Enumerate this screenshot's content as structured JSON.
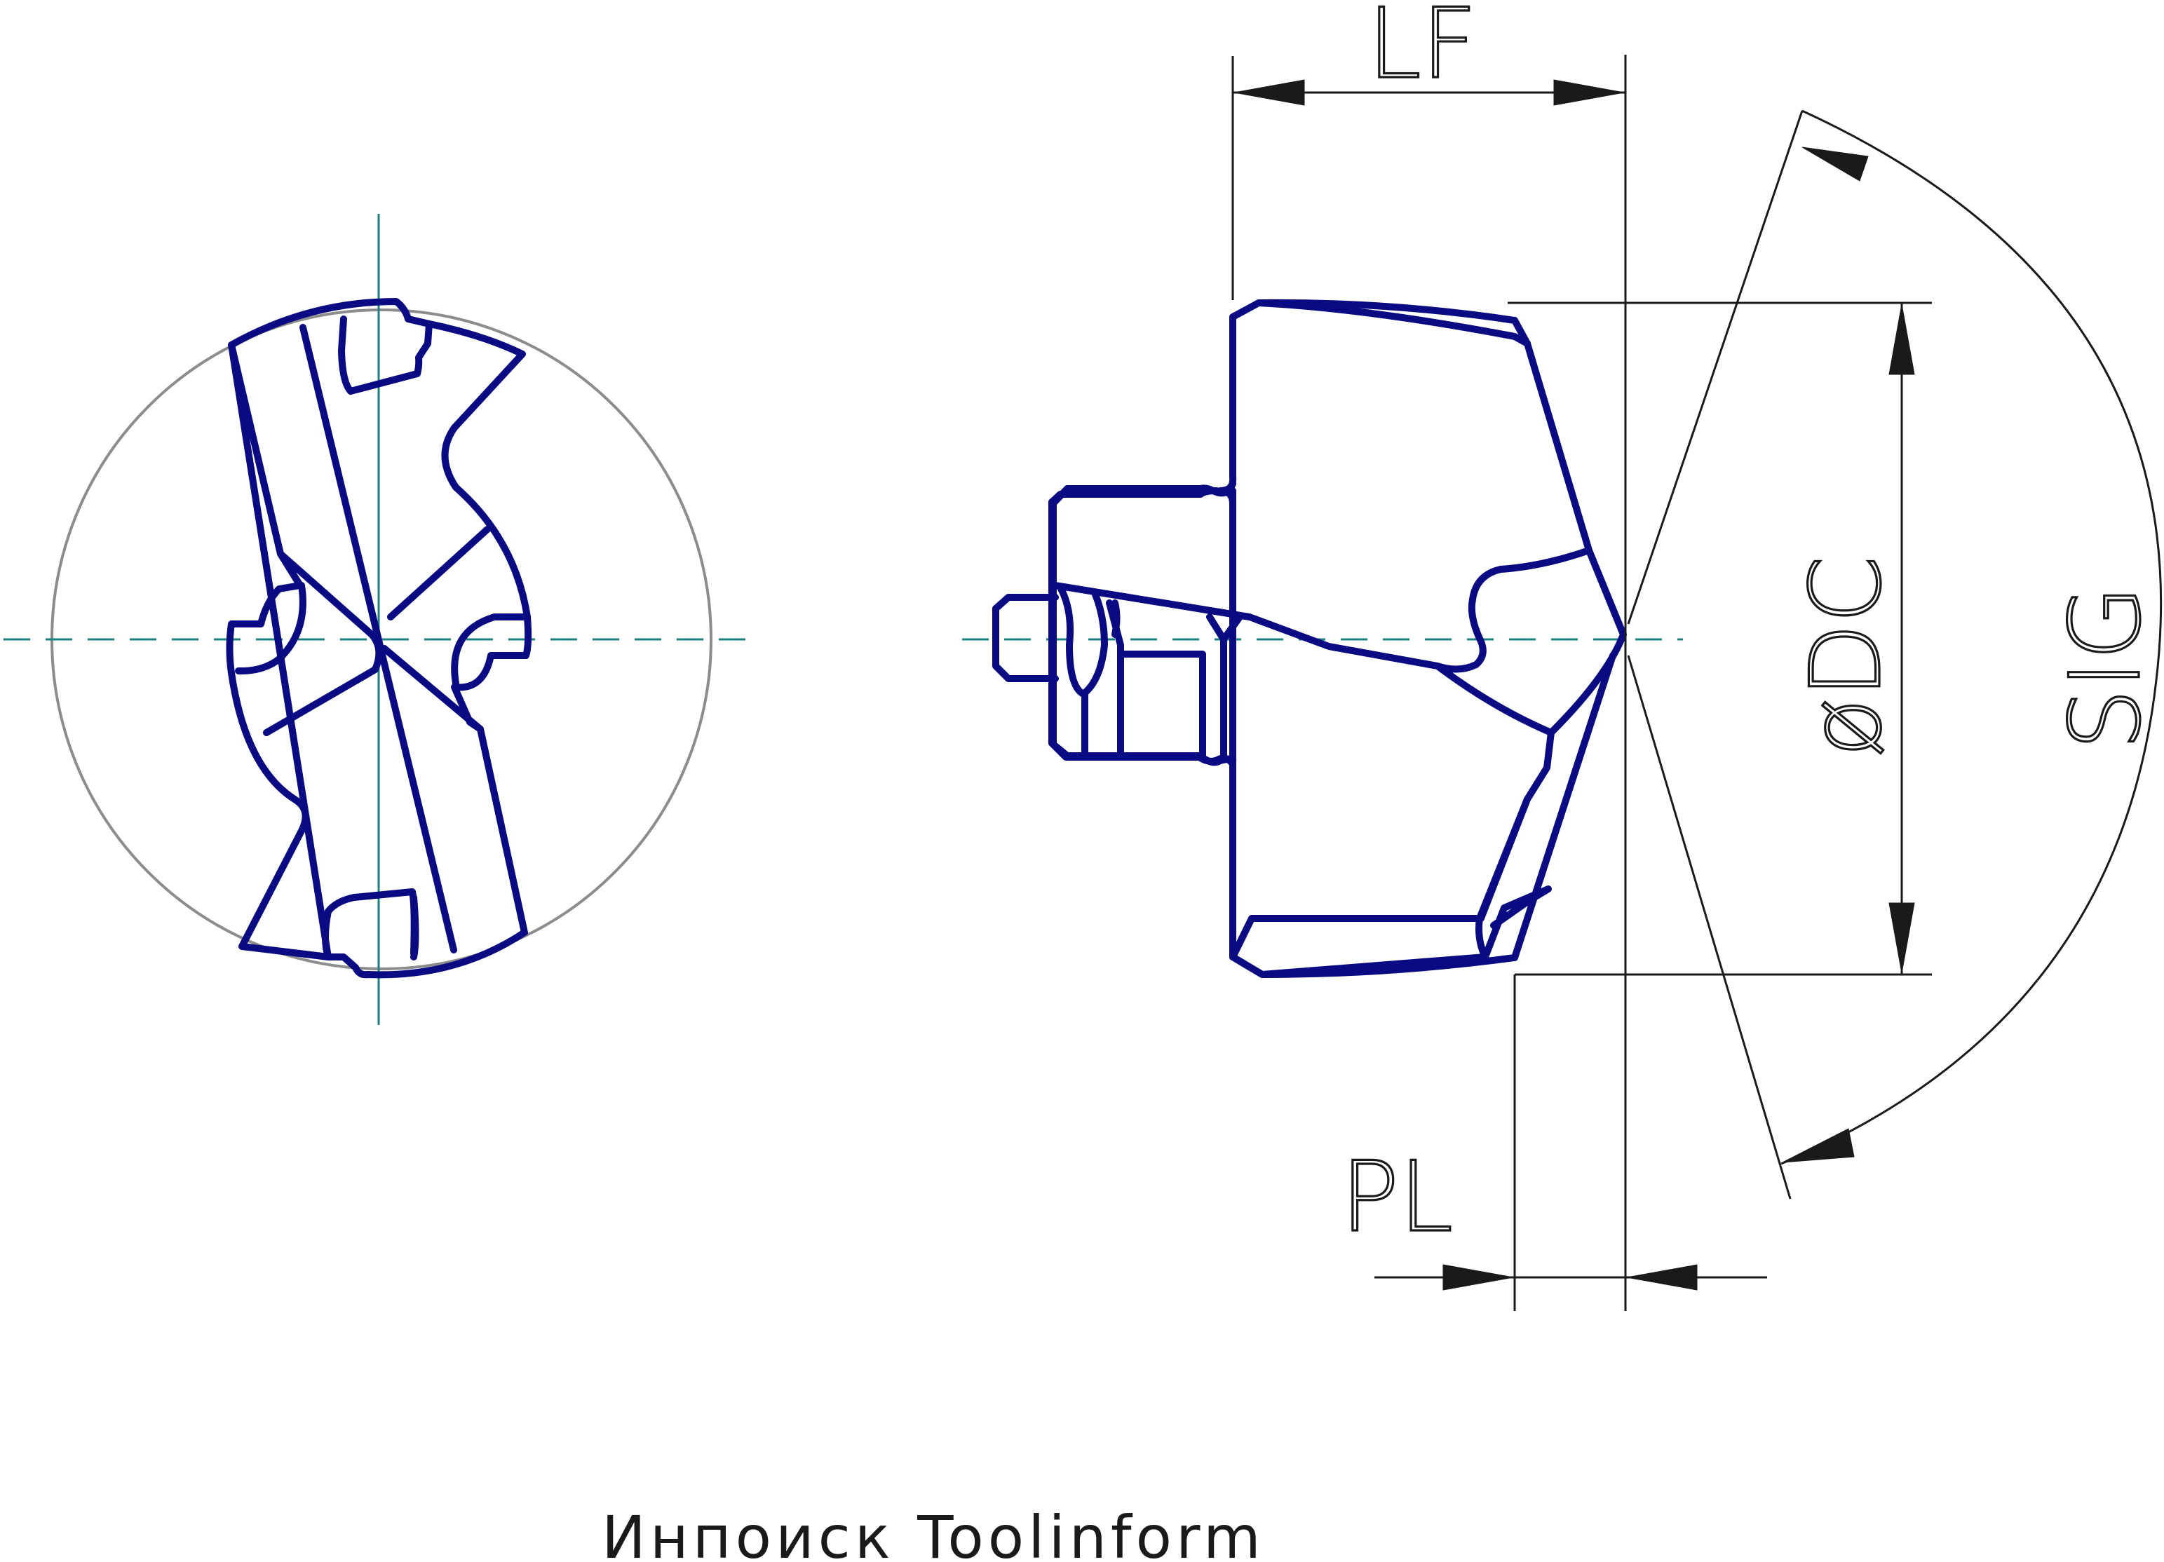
{
  "dimensions": {
    "lf": "LF",
    "dc": "øDC",
    "sig": "SIG",
    "pl": "PL"
  },
  "caption": "Инпоиск Toolinform",
  "colors": {
    "part_outline": "#0a0a82",
    "center_axis": "#1e7f7f",
    "dimension_lines": "#1a1a1a",
    "end_view_circle": "#8c8c8c"
  }
}
